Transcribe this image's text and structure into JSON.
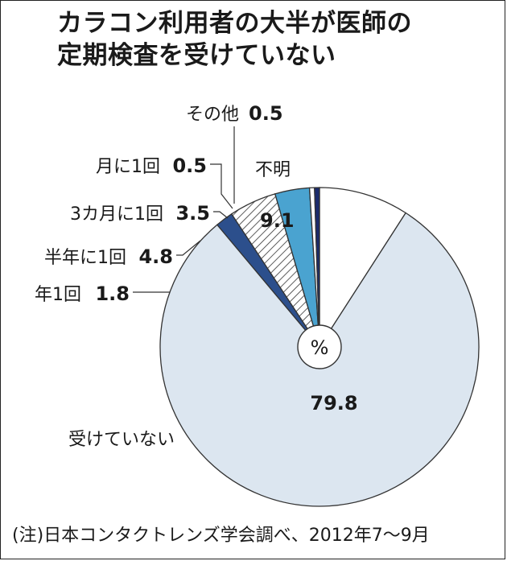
{
  "title_line1": "カラコン利用者の大半が医師の",
  "title_line2": "定期検査を受けていない",
  "source": "(注)日本コンタクトレンズ学会調べ、2012年7～9月",
  "center_label": "%",
  "chart_data": {
    "type": "pie",
    "title": "カラコン利用者の大半が医師の定期検査を受けていない",
    "unit": "%",
    "legend": "none",
    "slices": [
      {
        "label": "不明",
        "value": 9.1,
        "color": "#ffffff",
        "pattern": "none"
      },
      {
        "label": "受けていない",
        "value": 79.8,
        "color": "#dce6f0",
        "pattern": "none"
      },
      {
        "label": "年1回",
        "value": 1.8,
        "color": "#2c4f8c",
        "pattern": "none"
      },
      {
        "label": "半年に1回",
        "value": 4.8,
        "color": "#ffffff",
        "pattern": "hatch"
      },
      {
        "label": "3カ月に1回",
        "value": 3.5,
        "color": "#4aa3d0",
        "pattern": "none"
      },
      {
        "label": "月に1回",
        "value": 0.5,
        "color": "#ffffff",
        "pattern": "none"
      },
      {
        "label": "その他",
        "value": 0.5,
        "color": "#1a2a6c",
        "pattern": "none"
      }
    ]
  }
}
